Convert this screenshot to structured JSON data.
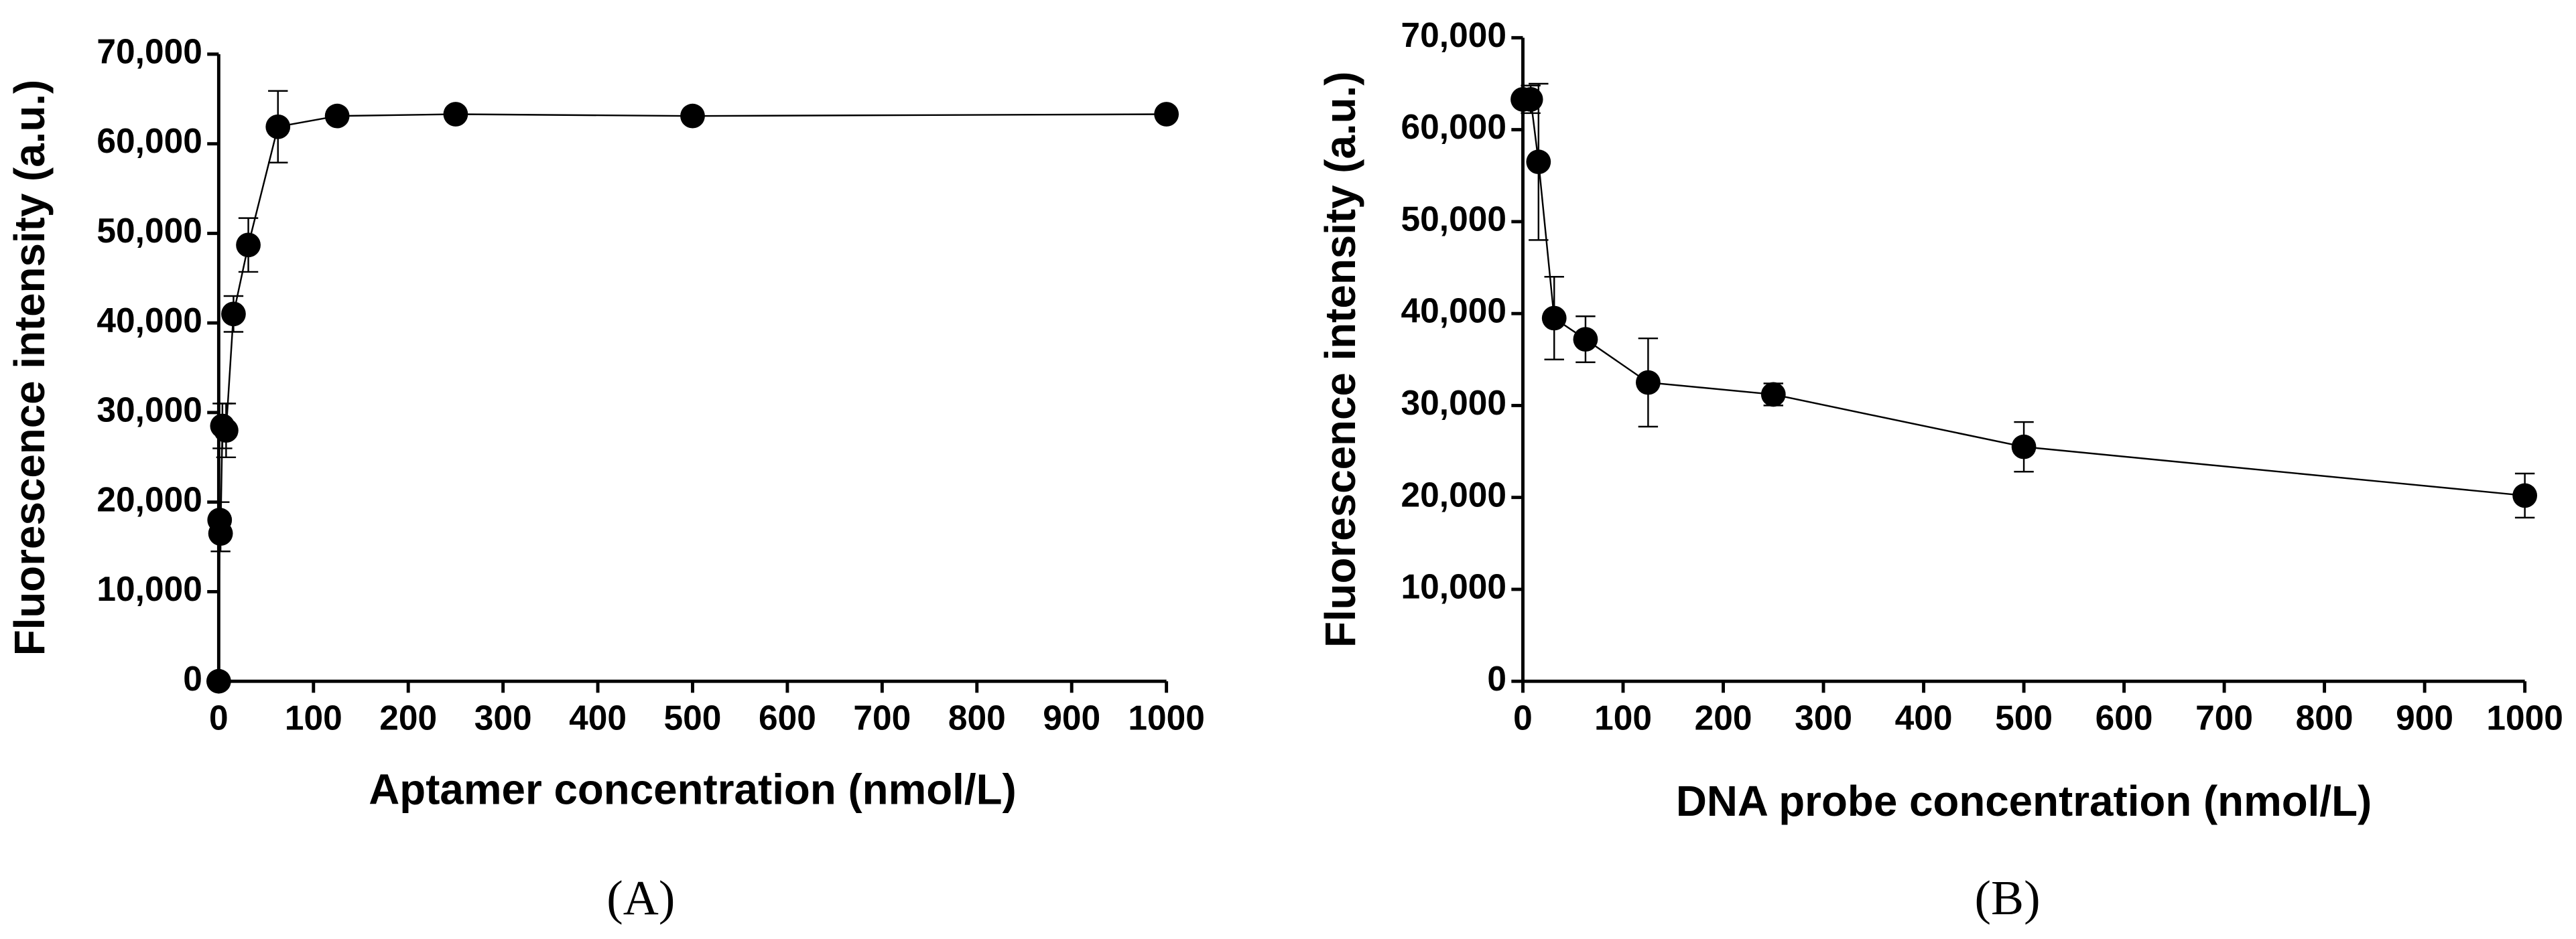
{
  "chart_data": [
    {
      "type": "line",
      "label": "(A)",
      "x_label": "Aptamer concentration (nmol/L)",
      "y_label": "Fluorescence intensity (a.u.)",
      "x": [
        0,
        0.98,
        1.95,
        3.9,
        7.8,
        15.6,
        31.25,
        62.5,
        125,
        250,
        500,
        1000
      ],
      "series": [
        {
          "color": "#000000",
          "values": [
            0,
            18000,
            16500,
            28500,
            28000,
            41000,
            48700,
            61900,
            63100,
            63300,
            63100,
            63300
          ],
          "errors": [
            0,
            2000,
            2000,
            2500,
            3000,
            2000,
            3000,
            4000,
            500,
            500,
            500,
            500
          ]
        }
      ],
      "xlim": [
        0,
        1000
      ],
      "xticks": [
        0,
        100,
        200,
        300,
        400,
        500,
        600,
        700,
        800,
        900,
        1000
      ],
      "ylim": [
        0,
        70000
      ],
      "yticks": [
        0,
        {
          "value": 10000,
          "label": "10,000"
        },
        {
          "value": 20000,
          "label": "20,000"
        },
        {
          "value": 30000,
          "label": "30,000"
        },
        {
          "value": 40000,
          "label": "40,000"
        },
        {
          "value": 50000,
          "label": "50,000"
        },
        {
          "value": 60000,
          "label": "60,000"
        },
        {
          "value": 70000,
          "label": "70,000"
        }
      ]
    },
    {
      "type": "line",
      "label": "(B)",
      "x_label": "DNA probe concentration (nmol/L)",
      "y_label": "Fluorescence intensity (a.u.)",
      "x": [
        0,
        7.8,
        15.6,
        31.25,
        62.5,
        125,
        250,
        500,
        1000
      ],
      "series": [
        {
          "color": "#000000",
          "values": [
            63300,
            63300,
            56500,
            39500,
            37200,
            32500,
            31200,
            25500,
            20200
          ],
          "errors": [
            500,
            1500,
            8500,
            4500,
            2500,
            4800,
            1200,
            2700,
            2400
          ]
        }
      ],
      "xlim": [
        0,
        1000
      ],
      "xticks": [
        0,
        100,
        200,
        300,
        400,
        500,
        600,
        700,
        800,
        900,
        1000
      ],
      "ylim": [
        0,
        70000
      ],
      "yticks": [
        0,
        {
          "value": 10000,
          "label": "10,000"
        },
        {
          "value": 20000,
          "label": "20,000"
        },
        {
          "value": 30000,
          "label": "30,000"
        },
        {
          "value": 40000,
          "label": "40,000"
        },
        {
          "value": 50000,
          "label": "50,000"
        },
        {
          "value": 60000,
          "label": "60,000"
        },
        {
          "value": 70000,
          "label": "70,000"
        }
      ]
    }
  ]
}
